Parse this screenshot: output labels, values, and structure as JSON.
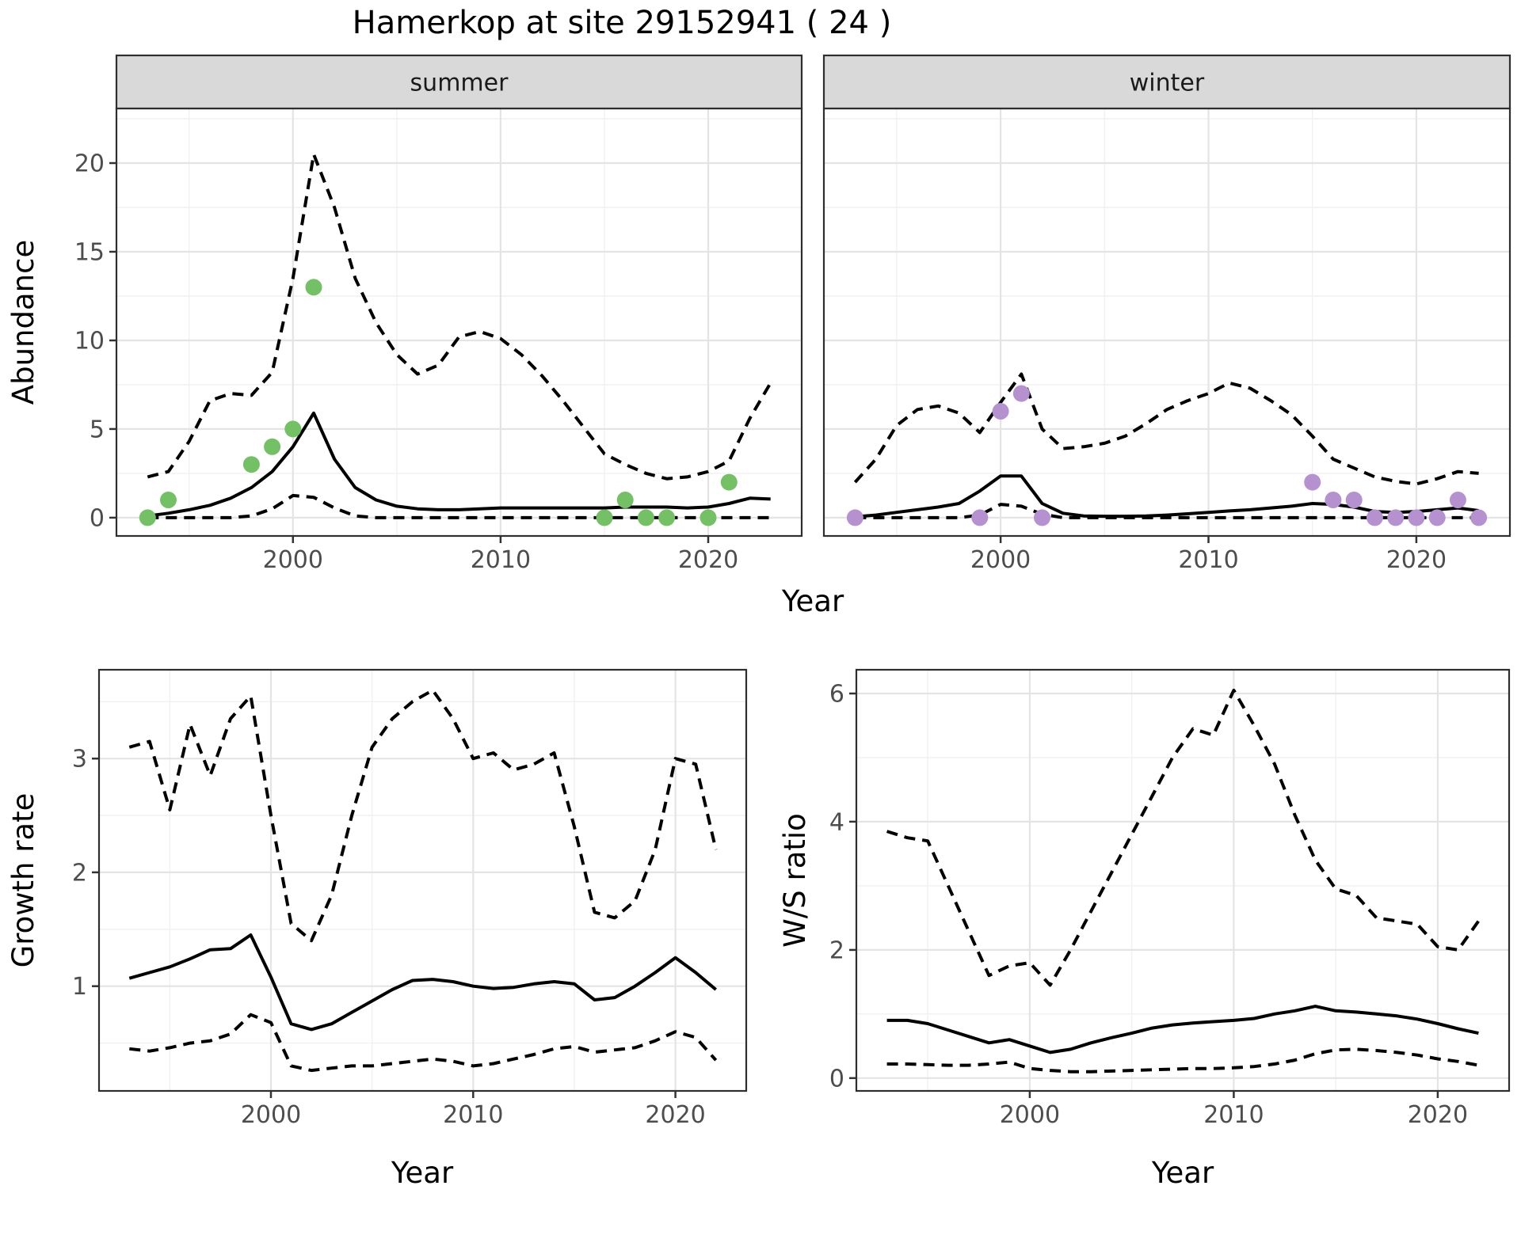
{
  "title": "Hamerkop at site 29152941 ( 24 )",
  "labels": {
    "x_axis_top": "Year",
    "x_axis_bottom": "Year",
    "y_axis_top": "Abundance",
    "y_axis_growth": "Growth rate",
    "y_axis_ws": "W/S ratio"
  },
  "colors": {
    "summer_point": "#74c065",
    "winter_point": "#b591d0",
    "line": "#000000",
    "panel_bg": "#ffffff",
    "grid_major": "#e4e4e4",
    "grid_minor": "#f1f1f1",
    "strip_bg": "#d9d9d9",
    "strip_text": "#1a1a1a",
    "axis_text": "#4d4d4d",
    "border": "#2e2e2e"
  },
  "chart_data": [
    {
      "id": "abundance_summer",
      "type": "line",
      "facet": "summer",
      "ylabel": "Abundance",
      "xlabel": "Year",
      "x_years": [
        1993,
        1994,
        1995,
        1996,
        1997,
        1998,
        1999,
        2000,
        2001,
        2002,
        2003,
        2004,
        2005,
        2006,
        2007,
        2008,
        2009,
        2010,
        2011,
        2012,
        2013,
        2014,
        2015,
        2016,
        2017,
        2018,
        2019,
        2020,
        2021,
        2022,
        2023
      ],
      "series": [
        {
          "name": "median-fit",
          "style": "solid",
          "values": [
            0.1,
            0.25,
            0.45,
            0.7,
            1.1,
            1.7,
            2.6,
            4.0,
            5.9,
            3.3,
            1.7,
            1.0,
            0.65,
            0.5,
            0.45,
            0.45,
            0.5,
            0.55,
            0.55,
            0.55,
            0.55,
            0.55,
            0.55,
            0.6,
            0.6,
            0.6,
            0.55,
            0.6,
            0.8,
            1.1,
            1.05
          ]
        },
        {
          "name": "upper-ci",
          "style": "dashed",
          "values": [
            2.3,
            2.6,
            4.3,
            6.6,
            7.0,
            6.9,
            8.2,
            13.5,
            20.5,
            17.5,
            13.5,
            11.0,
            9.2,
            8.1,
            8.6,
            10.2,
            10.5,
            10.1,
            9.2,
            8.0,
            6.6,
            5.1,
            3.6,
            3.0,
            2.5,
            2.2,
            2.3,
            2.6,
            3.2,
            5.6,
            7.6
          ]
        },
        {
          "name": "lower-ci",
          "style": "dashed",
          "values": [
            0,
            0,
            0,
            0,
            0,
            0.1,
            0.5,
            1.25,
            1.15,
            0.55,
            0.1,
            0,
            0,
            0,
            0,
            0,
            0,
            0,
            0,
            0,
            0,
            0,
            0,
            0,
            0,
            0,
            0,
            0,
            0,
            0,
            0
          ]
        }
      ],
      "points": {
        "color": "#74c065",
        "data": [
          [
            1993,
            0
          ],
          [
            1994,
            1
          ],
          [
            1998,
            3
          ],
          [
            1999,
            4
          ],
          [
            2000,
            5
          ],
          [
            2001,
            13
          ],
          [
            2015,
            0
          ],
          [
            2016,
            1
          ],
          [
            2017,
            0
          ],
          [
            2018,
            0
          ],
          [
            2020,
            0
          ],
          [
            2021,
            2
          ]
        ]
      },
      "xlim": [
        1991.5,
        2024.5
      ],
      "ylim": [
        -1.03,
        23.08
      ],
      "xticks": [
        2000,
        2010,
        2020
      ],
      "yticks": [
        0,
        5,
        10,
        15,
        20
      ],
      "xminor": [
        1995,
        2005,
        2015
      ],
      "yminor": [
        2.5,
        7.5,
        12.5,
        17.5,
        22.5
      ],
      "grid": true
    },
    {
      "id": "abundance_winter",
      "type": "line",
      "facet": "winter",
      "ylabel": "Abundance",
      "xlabel": "Year",
      "x_years": [
        1993,
        1994,
        1995,
        1996,
        1997,
        1998,
        1999,
        2000,
        2001,
        2002,
        2003,
        2004,
        2005,
        2006,
        2007,
        2008,
        2009,
        2010,
        2011,
        2012,
        2013,
        2014,
        2015,
        2016,
        2017,
        2018,
        2019,
        2020,
        2021,
        2022,
        2023
      ],
      "series": [
        {
          "name": "median-fit",
          "style": "solid",
          "values": [
            0.05,
            0.15,
            0.3,
            0.45,
            0.6,
            0.8,
            1.5,
            2.35,
            2.35,
            0.8,
            0.25,
            0.1,
            0.08,
            0.08,
            0.1,
            0.15,
            0.22,
            0.3,
            0.38,
            0.45,
            0.55,
            0.65,
            0.8,
            0.75,
            0.6,
            0.35,
            0.3,
            0.35,
            0.45,
            0.55,
            0.4
          ]
        },
        {
          "name": "upper-ci",
          "style": "dashed",
          "values": [
            2.0,
            3.3,
            5.2,
            6.1,
            6.3,
            5.9,
            4.8,
            6.5,
            8.1,
            5.0,
            3.9,
            4.0,
            4.2,
            4.6,
            5.3,
            6.1,
            6.6,
            7.0,
            7.6,
            7.3,
            6.6,
            5.8,
            4.6,
            3.3,
            2.8,
            2.3,
            2.05,
            1.9,
            2.2,
            2.6,
            2.5
          ]
        },
        {
          "name": "lower-ci",
          "style": "dashed",
          "values": [
            0,
            0,
            0,
            0,
            0,
            0,
            0.15,
            0.75,
            0.65,
            0.2,
            0,
            0,
            0,
            0,
            0,
            0,
            0,
            0,
            0,
            0,
            0,
            0,
            0,
            0,
            0,
            0,
            0,
            0,
            0,
            0,
            0
          ]
        }
      ],
      "points": {
        "color": "#b591d0",
        "data": [
          [
            1993,
            0
          ],
          [
            1999,
            0
          ],
          [
            2000,
            6
          ],
          [
            2001,
            7
          ],
          [
            2002,
            0
          ],
          [
            2015,
            2
          ],
          [
            2016,
            1
          ],
          [
            2017,
            1
          ],
          [
            2018,
            0
          ],
          [
            2019,
            0
          ],
          [
            2020,
            0
          ],
          [
            2021,
            0
          ],
          [
            2022,
            1
          ],
          [
            2023,
            0
          ]
        ]
      },
      "xlim": [
        1991.5,
        2024.5
      ],
      "ylim": [
        -1.03,
        23.08
      ],
      "xticks": [
        2000,
        2010,
        2020
      ],
      "yticks": [
        0,
        5,
        10,
        15,
        20
      ],
      "xminor": [
        1995,
        2005,
        2015
      ],
      "yminor": [
        2.5,
        7.5,
        12.5,
        17.5,
        22.5
      ],
      "grid": true
    },
    {
      "id": "growth_rate",
      "type": "line",
      "ylabel": "Growth rate",
      "xlabel": "Year",
      "x_years": [
        1993,
        1994,
        1995,
        1996,
        1997,
        1998,
        1999,
        2000,
        2001,
        2002,
        2003,
        2004,
        2005,
        2006,
        2007,
        2008,
        2009,
        2010,
        2011,
        2012,
        2013,
        2014,
        2015,
        2016,
        2017,
        2018,
        2019,
        2020,
        2021,
        2022
      ],
      "series": [
        {
          "name": "median-fit",
          "style": "solid",
          "values": [
            1.07,
            1.12,
            1.17,
            1.24,
            1.32,
            1.33,
            1.45,
            1.08,
            0.67,
            0.62,
            0.67,
            0.77,
            0.87,
            0.97,
            1.05,
            1.06,
            1.04,
            1.0,
            0.98,
            0.99,
            1.02,
            1.04,
            1.02,
            0.88,
            0.9,
            1.0,
            1.12,
            1.25,
            1.12,
            0.97
          ]
        },
        {
          "name": "upper-ci",
          "style": "dashed",
          "values": [
            3.1,
            3.15,
            2.55,
            3.3,
            2.85,
            3.35,
            3.55,
            2.5,
            1.55,
            1.4,
            1.8,
            2.5,
            3.1,
            3.35,
            3.5,
            3.6,
            3.35,
            3.0,
            3.05,
            2.9,
            2.95,
            3.05,
            2.4,
            1.65,
            1.6,
            1.75,
            2.2,
            3.0,
            2.95,
            2.2
          ]
        },
        {
          "name": "lower-ci",
          "style": "dashed",
          "values": [
            0.45,
            0.43,
            0.46,
            0.5,
            0.52,
            0.58,
            0.75,
            0.68,
            0.3,
            0.26,
            0.28,
            0.3,
            0.3,
            0.32,
            0.34,
            0.36,
            0.34,
            0.3,
            0.32,
            0.36,
            0.4,
            0.45,
            0.47,
            0.42,
            0.44,
            0.46,
            0.52,
            0.6,
            0.55,
            0.35
          ]
        }
      ],
      "xlim": [
        1991.5,
        2023.5
      ],
      "ylim": [
        0.08,
        3.78
      ],
      "xticks": [
        2000,
        2010,
        2020
      ],
      "yticks": [
        1,
        2,
        3
      ],
      "xminor": [
        1995,
        2005,
        2015
      ],
      "yminor": [
        0.5,
        1.5,
        2.5,
        3.5
      ],
      "grid": true
    },
    {
      "id": "ws_ratio",
      "type": "line",
      "ylabel": "W/S ratio",
      "xlabel": "Year",
      "x_years": [
        1993,
        1994,
        1995,
        1996,
        1997,
        1998,
        1999,
        2000,
        2001,
        2002,
        2003,
        2004,
        2005,
        2006,
        2007,
        2008,
        2009,
        2010,
        2011,
        2012,
        2013,
        2014,
        2015,
        2016,
        2017,
        2018,
        2019,
        2020,
        2021,
        2022
      ],
      "series": [
        {
          "name": "median-fit",
          "style": "solid",
          "values": [
            0.9,
            0.9,
            0.85,
            0.75,
            0.65,
            0.55,
            0.6,
            0.5,
            0.4,
            0.45,
            0.55,
            0.63,
            0.7,
            0.78,
            0.83,
            0.86,
            0.88,
            0.9,
            0.93,
            1.0,
            1.05,
            1.12,
            1.05,
            1.03,
            1.0,
            0.97,
            0.92,
            0.85,
            0.77,
            0.7
          ]
        },
        {
          "name": "upper-ci",
          "style": "dashed",
          "values": [
            3.85,
            3.75,
            3.7,
            3.0,
            2.3,
            1.6,
            1.75,
            1.8,
            1.45,
            2.0,
            2.6,
            3.2,
            3.8,
            4.4,
            5.0,
            5.45,
            5.35,
            6.05,
            5.5,
            4.9,
            4.1,
            3.4,
            2.95,
            2.85,
            2.5,
            2.45,
            2.4,
            2.05,
            2.0,
            2.45
          ]
        },
        {
          "name": "lower-ci",
          "style": "dashed",
          "values": [
            0.22,
            0.22,
            0.21,
            0.2,
            0.2,
            0.22,
            0.25,
            0.15,
            0.12,
            0.1,
            0.1,
            0.11,
            0.12,
            0.13,
            0.14,
            0.15,
            0.15,
            0.16,
            0.18,
            0.22,
            0.28,
            0.38,
            0.44,
            0.45,
            0.43,
            0.4,
            0.36,
            0.3,
            0.26,
            0.2
          ]
        }
      ],
      "xlim": [
        1991.5,
        2023.5
      ],
      "ylim": [
        -0.2,
        6.37
      ],
      "xticks": [
        2000,
        2010,
        2020
      ],
      "yticks": [
        0,
        2,
        4,
        6
      ],
      "xminor": [
        1995,
        2005,
        2015
      ],
      "yminor": [
        1,
        3,
        5
      ],
      "grid": true
    }
  ]
}
